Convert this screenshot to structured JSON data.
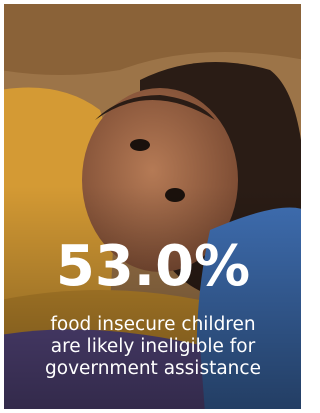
{
  "headline": "53.0%",
  "caption_lines": [
    "food insecure children",
    "are likely ineligible for",
    "government assistance"
  ]
}
